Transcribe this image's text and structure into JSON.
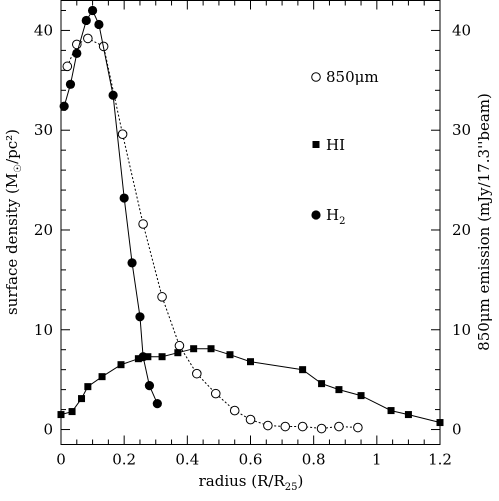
{
  "chart_data": {
    "type": "line",
    "xlabel": "radius (R/R",
    "xlabel_sub": "25",
    "xlabel_end": ")",
    "ylabel_left": "surface density (M",
    "ylabel_left_sun": "☉",
    "ylabel_left_end": "/pc²)",
    "ylabel_right": "850μm emission (mJy/17.3''beam)",
    "xlim": [
      0,
      1.2
    ],
    "ylim": [
      -1.5,
      43
    ],
    "x_ticks": [
      "0",
      "0.2",
      "0.4",
      "0.6",
      "0.8",
      "1",
      "1.2"
    ],
    "x_tick_values": [
      0,
      0.2,
      0.4,
      0.6,
      0.8,
      1.0,
      1.2
    ],
    "y_ticks": [
      "0",
      "10",
      "20",
      "30",
      "40"
    ],
    "y_tick_values": [
      0,
      10,
      20,
      30,
      40
    ],
    "grid": false,
    "legend_position": "right-upper",
    "series": [
      {
        "name": "850μm",
        "marker": "open-circle",
        "line": "dotted",
        "x": [
          0.02,
          0.05,
          0.085,
          0.135,
          0.195,
          0.26,
          0.32,
          0.375,
          0.43,
          0.49,
          0.55,
          0.6,
          0.655,
          0.71,
          0.765,
          0.825,
          0.88,
          0.94
        ],
        "y": [
          36.4,
          38.6,
          39.2,
          38.4,
          29.6,
          20.6,
          13.3,
          8.4,
          5.6,
          3.6,
          1.9,
          1.0,
          0.4,
          0.3,
          0.3,
          0.1,
          0.3,
          0.2
        ]
      },
      {
        "name": "HI",
        "marker": "filled-square",
        "line": "solid",
        "x": [
          0.0,
          0.035,
          0.065,
          0.085,
          0.13,
          0.19,
          0.245,
          0.275,
          0.32,
          0.37,
          0.42,
          0.475,
          0.535,
          0.6,
          0.765,
          0.825,
          0.88,
          0.95,
          1.045,
          1.1,
          1.2
        ],
        "y": [
          1.5,
          1.8,
          3.1,
          4.3,
          5.3,
          6.5,
          7.1,
          7.3,
          7.3,
          7.7,
          8.1,
          8.1,
          7.5,
          6.8,
          6.0,
          4.6,
          4.0,
          3.4,
          1.9,
          1.5,
          0.7
        ]
      },
      {
        "name": "H₂",
        "marker": "filled-circle",
        "line": "solid",
        "x": [
          0.01,
          0.03,
          0.05,
          0.08,
          0.1,
          0.12,
          0.165,
          0.2,
          0.225,
          0.25,
          0.26,
          0.28,
          0.305
        ],
        "y": [
          32.4,
          34.6,
          37.7,
          41.0,
          42.0,
          40.6,
          33.5,
          23.2,
          16.7,
          11.3,
          7.3,
          4.4,
          2.6
        ]
      }
    ],
    "legend": [
      {
        "label": "850μm",
        "marker": "open-circle"
      },
      {
        "label": "HI",
        "marker": "filled-square"
      },
      {
        "label": "H",
        "label_sub": "2",
        "marker": "filled-circle"
      }
    ]
  }
}
